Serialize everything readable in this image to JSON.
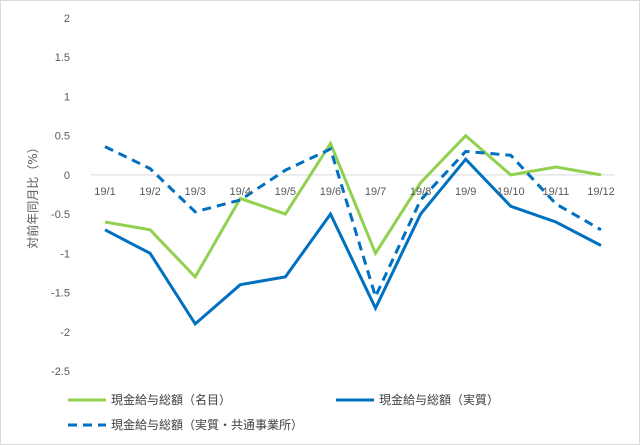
{
  "chart_data": {
    "type": "line",
    "title": "",
    "xlabel": "",
    "ylabel": "対前年同月比（%）",
    "ylim": [
      -2.5,
      2
    ],
    "yticks": [
      2,
      1.5,
      1,
      0.5,
      0,
      -0.5,
      -1,
      -1.5,
      -2,
      -2.5
    ],
    "ytick_labels": [
      "2",
      "1.5",
      "1",
      "0.5",
      "0",
      "-0.5",
      "-1",
      "-1.5",
      "-2",
      "-2.5"
    ],
    "categories": [
      "19/1",
      "19/2",
      "19/3",
      "19/4",
      "19/5",
      "19/6",
      "19/7",
      "19/8",
      "19/9",
      "19/10",
      "19/11",
      "19/12"
    ],
    "grid": false,
    "legend_position": "bottom",
    "series": [
      {
        "name": "現金給与総額（名目）",
        "color": "#92d050",
        "style": "solid",
        "values": [
          -0.6,
          -0.7,
          -1.3,
          -0.3,
          -0.5,
          0.4,
          -1.0,
          -0.1,
          0.5,
          0.0,
          0.1,
          0.0
        ]
      },
      {
        "name": "現金給与総額（実質）",
        "color": "#0070c0",
        "style": "solid",
        "values": [
          -0.7,
          -1.0,
          -1.9,
          -1.4,
          -1.3,
          -0.5,
          -1.7,
          -0.5,
          0.2,
          -0.4,
          -0.6,
          -0.9
        ]
      },
      {
        "name": "現金給与総額（実質・共通事業所）",
        "color": "#0070c0",
        "style": "dashed",
        "values": [
          0.36,
          0.08,
          -0.47,
          -0.32,
          0.06,
          0.33,
          -1.55,
          -0.32,
          0.3,
          0.25,
          -0.37,
          -0.7
        ]
      }
    ]
  }
}
